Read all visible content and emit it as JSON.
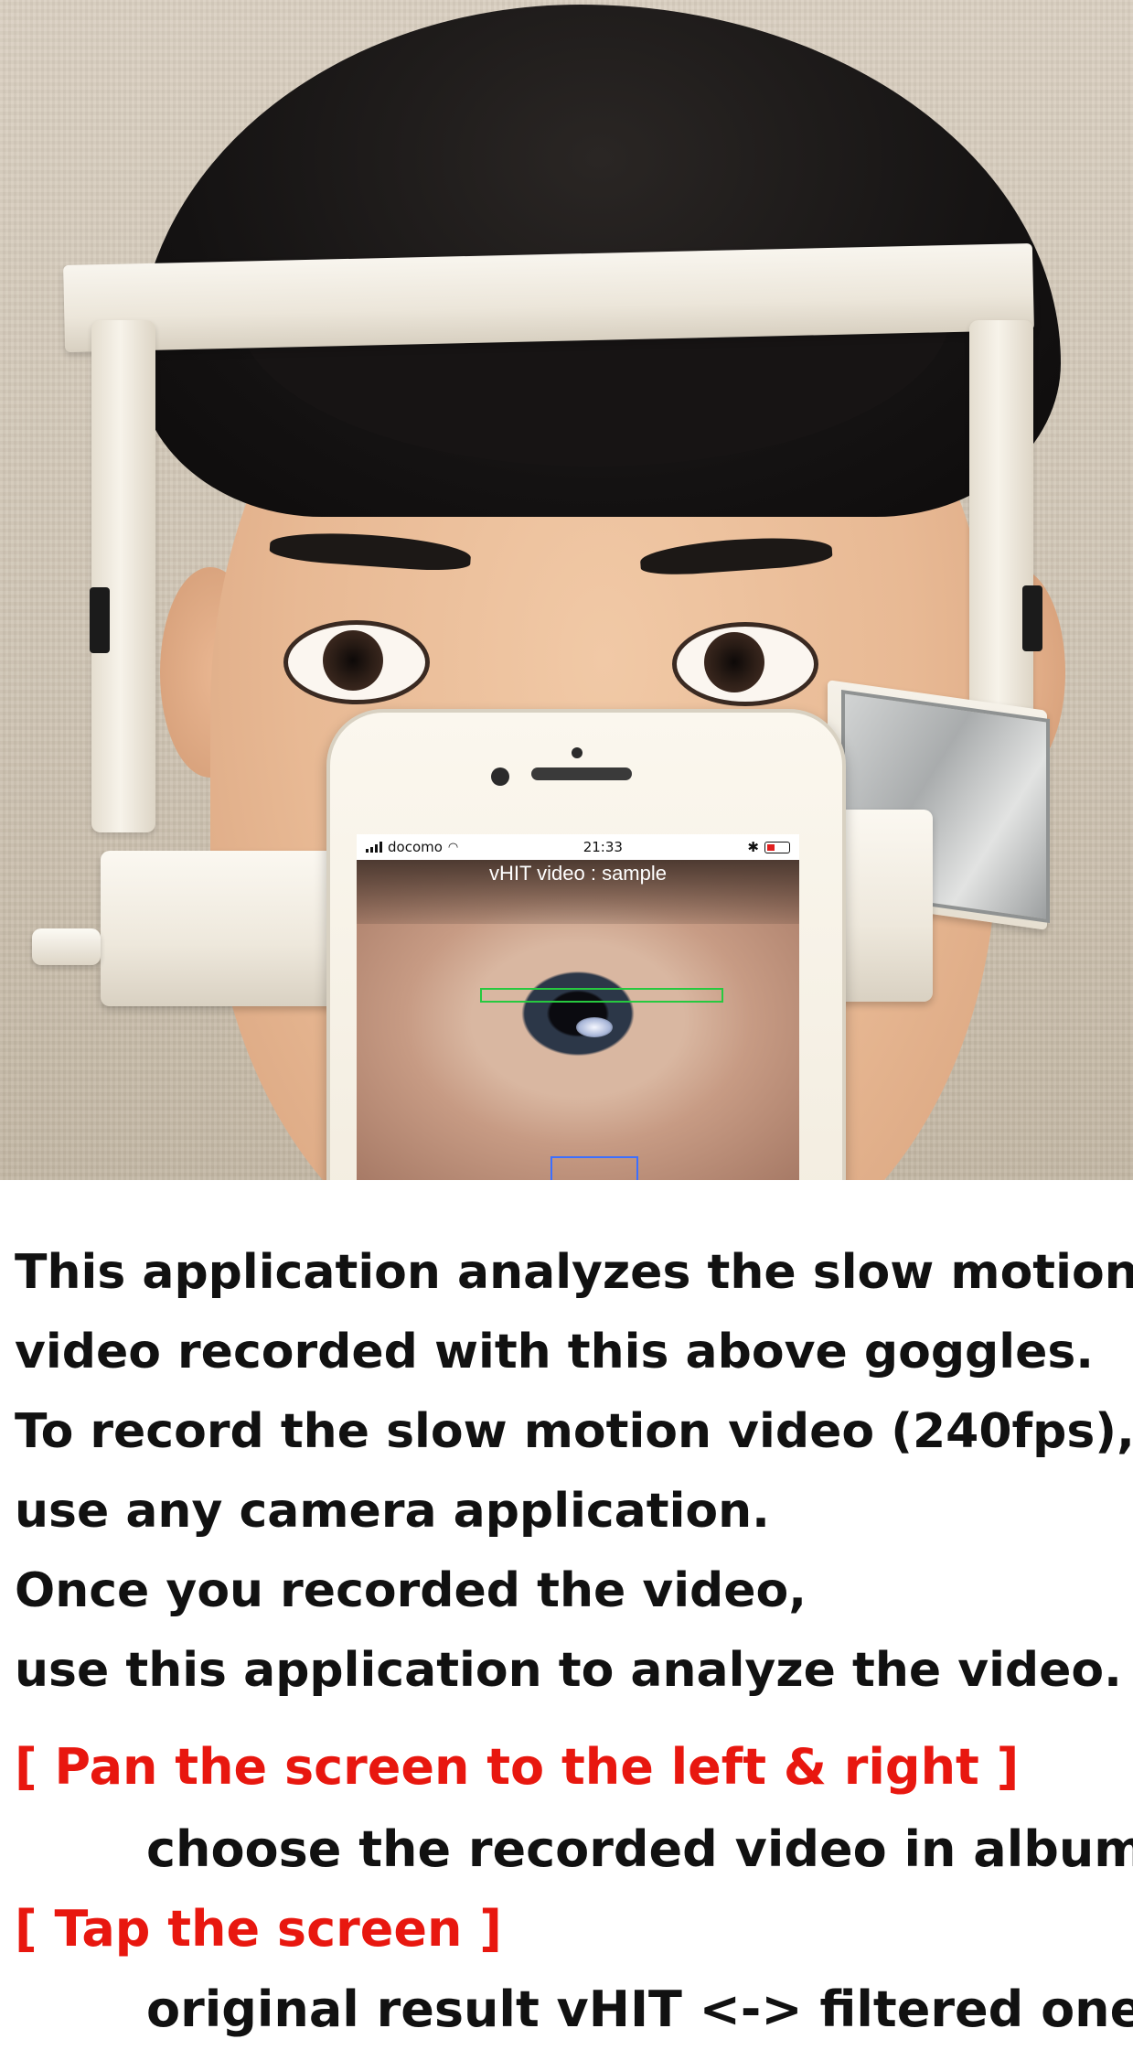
{
  "phone_screen": {
    "carrier": "docomo",
    "time": "21:33",
    "video_label": "vHIT video : sample"
  },
  "description": {
    "lines": [
      "This application analyzes the slow motion",
      "video recorded with this above goggles.",
      "To record the slow motion video (240fps),",
      "use any camera application.",
      "Once you recorded the video,",
      "use this application to analyze the video."
    ]
  },
  "instructions": [
    {
      "gesture": "[ Pan the screen to the left & right ]",
      "action": "choose the recorded video in album."
    },
    {
      "gesture": "[ Tap the screen ]",
      "action": "original result vHIT <-> filtered one."
    }
  ],
  "colors": {
    "gesture_text": "#e8170f",
    "body_text": "#111111",
    "roi_line": "#27c93f",
    "roi_box": "#3c6fff"
  }
}
